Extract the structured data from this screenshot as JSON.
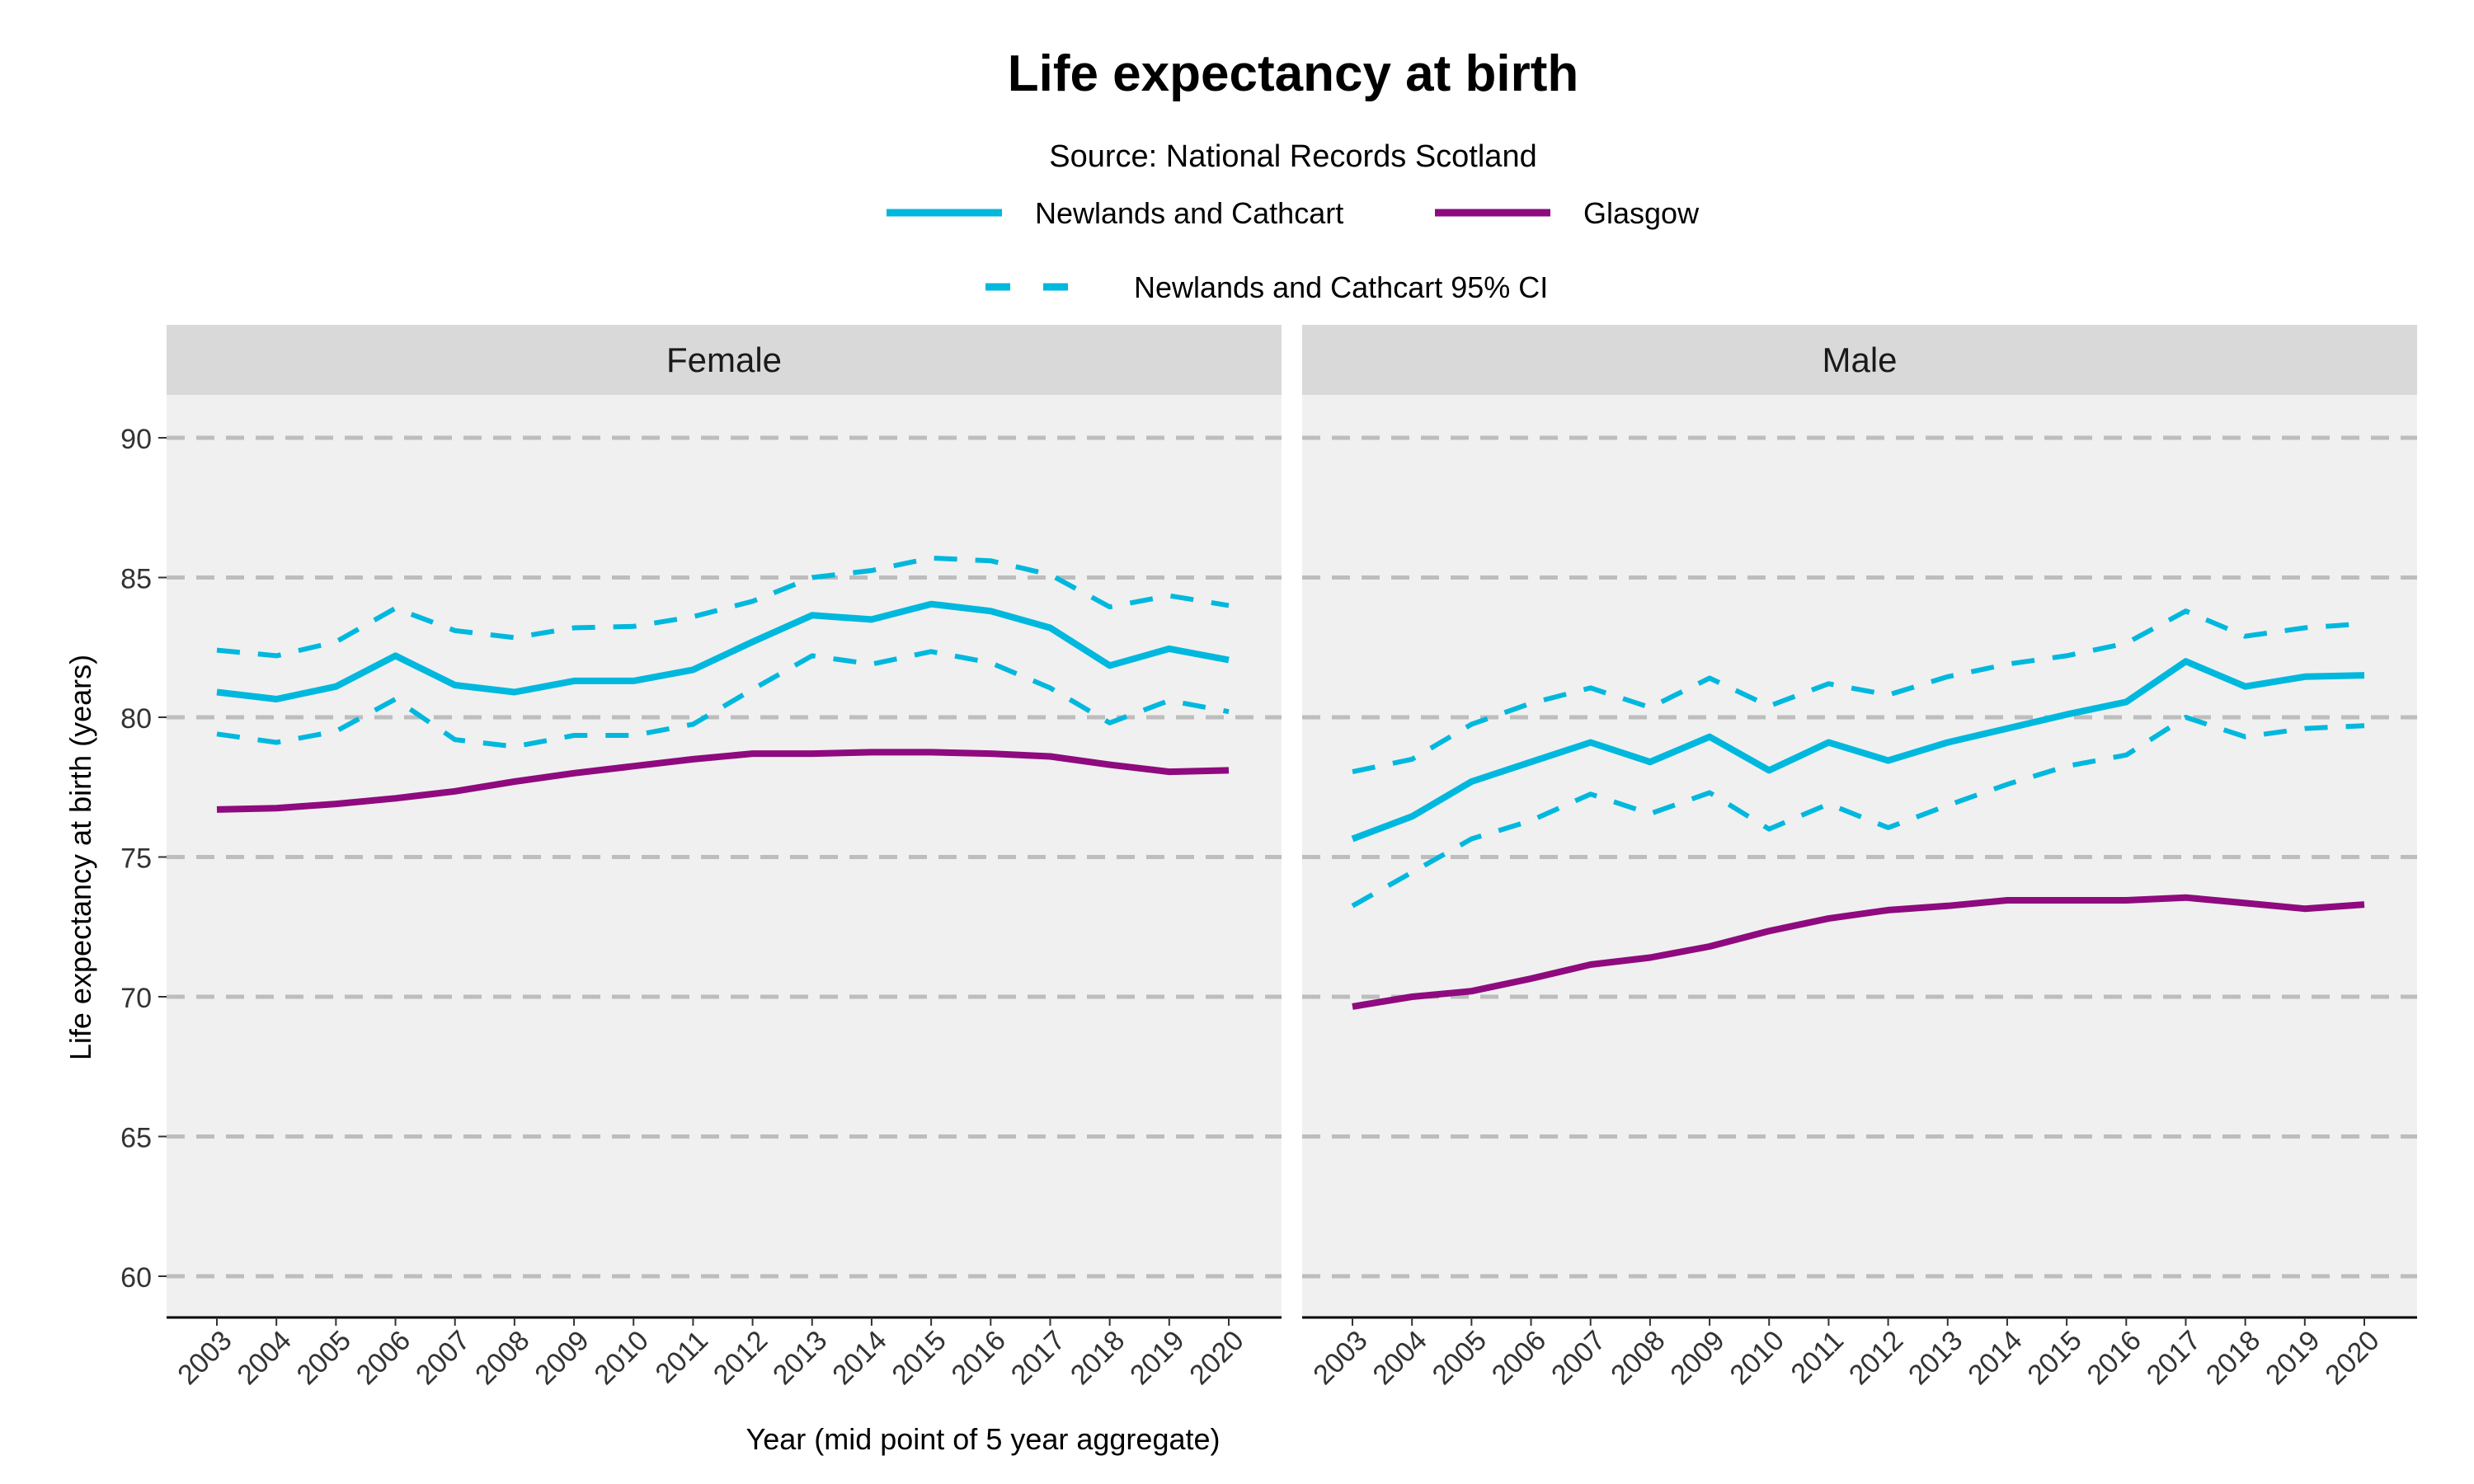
{
  "chart_data": {
    "type": "line",
    "title": "Life expectancy at birth",
    "subtitle": "Source: National Records Scotland",
    "xlabel": "Year (mid point of 5 year aggregate)",
    "ylabel": "Life expectancy at birth (years)",
    "ylim": [
      58.5,
      94
    ],
    "yticks": [
      60,
      65,
      70,
      75,
      80,
      85,
      90
    ],
    "grid": "horizontal dashed",
    "legend_position": "top",
    "legend": [
      {
        "label": "Newlands and Cathcart",
        "style": "solid",
        "color": "#00B8DE"
      },
      {
        "label": "Glasgow",
        "style": "solid",
        "color": "#8E0A7E"
      },
      {
        "label": "Newlands and Cathcart 95% CI",
        "style": "dashed",
        "color": "#00B8DE"
      }
    ],
    "x": [
      2003,
      2004,
      2005,
      2006,
      2007,
      2008,
      2009,
      2010,
      2011,
      2012,
      2013,
      2014,
      2015,
      2016,
      2017,
      2018,
      2019,
      2020
    ],
    "panels": [
      {
        "name": "Female",
        "series": [
          {
            "name": "Newlands and Cathcart 95% CI",
            "bound": "upper",
            "values": [
              82.4,
              82.2,
              82.7,
              83.9,
              83.1,
              82.85,
              83.2,
              83.25,
              83.6,
              84.15,
              85.0,
              85.25,
              85.7,
              85.6,
              85.1,
              83.95,
              84.35,
              84.0
            ]
          },
          {
            "name": "Newlands and Cathcart 95% CI",
            "bound": "lower",
            "values": [
              79.4,
              79.1,
              79.5,
              80.65,
              79.2,
              78.95,
              79.35,
              79.35,
              79.75,
              81.0,
              82.2,
              81.9,
              82.35,
              81.95,
              81.05,
              79.8,
              80.6,
              80.2
            ]
          },
          {
            "name": "Newlands and Cathcart",
            "values": [
              80.9,
              80.65,
              81.1,
              82.2,
              81.15,
              80.9,
              81.3,
              81.3,
              81.7,
              82.7,
              83.65,
              83.5,
              84.05,
              83.8,
              83.2,
              81.85,
              82.45,
              82.05
            ]
          },
          {
            "name": "Glasgow",
            "values": [
              76.7,
              76.75,
              76.9,
              77.1,
              77.35,
              77.7,
              78.0,
              78.25,
              78.5,
              78.7,
              78.7,
              78.75,
              78.75,
              78.7,
              78.6,
              78.3,
              78.05,
              78.1
            ]
          }
        ]
      },
      {
        "name": "Male",
        "series": [
          {
            "name": "Newlands and Cathcart 95% CI",
            "bound": "upper",
            "values": [
              78.05,
              78.5,
              79.75,
              80.5,
              81.05,
              80.35,
              81.4,
              80.4,
              81.2,
              80.8,
              81.45,
              81.9,
              82.2,
              82.65,
              83.8,
              82.9,
              83.2,
              83.35
            ]
          },
          {
            "name": "Newlands and Cathcart 95% CI",
            "bound": "lower",
            "values": [
              73.25,
              74.45,
              75.65,
              76.3,
              77.25,
              76.55,
              77.3,
              76.0,
              76.9,
              76.05,
              76.85,
              77.6,
              78.25,
              78.65,
              80.0,
              79.3,
              79.6,
              79.7
            ]
          },
          {
            "name": "Newlands and Cathcart",
            "values": [
              75.65,
              76.45,
              77.7,
              78.4,
              79.1,
              78.4,
              79.3,
              78.1,
              79.1,
              78.45,
              79.1,
              79.6,
              80.1,
              80.55,
              82.0,
              81.1,
              81.45,
              81.5
            ]
          },
          {
            "name": "Glasgow",
            "values": [
              69.65,
              70.0,
              70.2,
              70.65,
              71.15,
              71.4,
              71.8,
              72.35,
              72.8,
              73.1,
              73.25,
              73.45,
              73.45,
              73.45,
              73.55,
              73.35,
              73.15,
              73.3
            ]
          }
        ]
      }
    ]
  }
}
